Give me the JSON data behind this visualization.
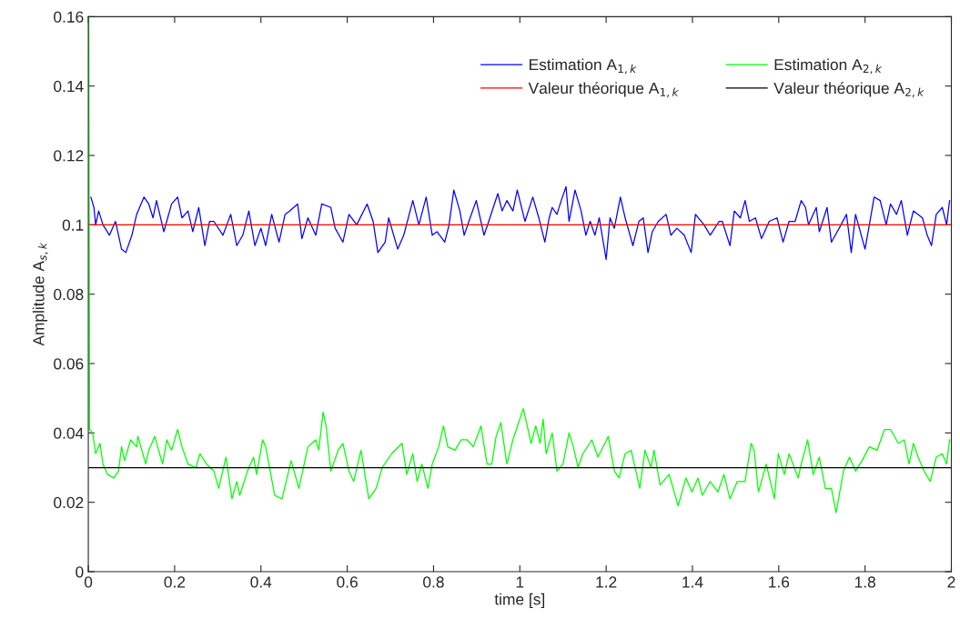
{
  "chart_data": {
    "type": "line",
    "xlabel": "time [s]",
    "ylabel": "Amplitude A$_{s,k}$",
    "xlim": [
      0,
      2
    ],
    "ylim": [
      0,
      0.16
    ],
    "xticks": [
      0,
      0.2,
      0.4,
      0.6,
      0.8,
      1,
      1.2,
      1.4,
      1.6,
      1.8,
      2
    ],
    "yticks": [
      0,
      0.02,
      0.04,
      0.06,
      0.08,
      0.1,
      0.12,
      0.14,
      0.16
    ],
    "grid": false,
    "legend": "top right",
    "marker": "none",
    "line_style": "solid",
    "series": [
      {
        "name": "Estimation A$_{1,k}$",
        "color": "#0000ff",
        "x": [
          0.006,
          0.013,
          0.017,
          0.024,
          0.034,
          0.049,
          0.063,
          0.077,
          0.087,
          0.101,
          0.112,
          0.129,
          0.14,
          0.15,
          0.158,
          0.175,
          0.193,
          0.207,
          0.217,
          0.231,
          0.242,
          0.256,
          0.27,
          0.281,
          0.291,
          0.312,
          0.33,
          0.344,
          0.358,
          0.372,
          0.386,
          0.4,
          0.411,
          0.425,
          0.442,
          0.456,
          0.467,
          0.485,
          0.495,
          0.509,
          0.527,
          0.541,
          0.562,
          0.572,
          0.59,
          0.604,
          0.622,
          0.646,
          0.66,
          0.671,
          0.688,
          0.696,
          0.717,
          0.731,
          0.752,
          0.766,
          0.783,
          0.797,
          0.808,
          0.826,
          0.836,
          0.847,
          0.861,
          0.871,
          0.882,
          0.899,
          0.917,
          0.928,
          0.949,
          0.959,
          0.97,
          0.984,
          0.994,
          1.012,
          1.03,
          1.044,
          1.058,
          1.068,
          1.075,
          1.086,
          1.096,
          1.107,
          1.114,
          1.128,
          1.142,
          1.153,
          1.163,
          1.174,
          1.184,
          1.2,
          1.209,
          1.219,
          1.233,
          1.244,
          1.262,
          1.276,
          1.286,
          1.297,
          1.307,
          1.321,
          1.339,
          1.35,
          1.364,
          1.381,
          1.397,
          1.407,
          1.427,
          1.441,
          1.462,
          1.469,
          1.487,
          1.497,
          1.511,
          1.522,
          1.532,
          1.546,
          1.56,
          1.578,
          1.596,
          1.61,
          1.624,
          1.638,
          1.652,
          1.662,
          1.669,
          1.687,
          1.694,
          1.712,
          1.722,
          1.74,
          1.757,
          1.768,
          1.778,
          1.8,
          1.81,
          1.821,
          1.835,
          1.849,
          1.859,
          1.873,
          1.884,
          1.898,
          1.912,
          1.933,
          1.944,
          1.954,
          1.965,
          1.979,
          1.989,
          1.996
        ],
        "values": [
          0.108,
          0.105,
          0.1,
          0.104,
          0.1,
          0.097,
          0.101,
          0.093,
          0.092,
          0.097,
          0.103,
          0.108,
          0.106,
          0.102,
          0.107,
          0.098,
          0.106,
          0.108,
          0.102,
          0.104,
          0.098,
          0.105,
          0.094,
          0.101,
          0.101,
          0.097,
          0.103,
          0.094,
          0.097,
          0.104,
          0.094,
          0.099,
          0.094,
          0.103,
          0.095,
          0.103,
          0.104,
          0.106,
          0.096,
          0.102,
          0.097,
          0.106,
          0.105,
          0.099,
          0.095,
          0.103,
          0.1,
          0.106,
          0.101,
          0.092,
          0.095,
          0.102,
          0.093,
          0.097,
          0.107,
          0.1,
          0.108,
          0.097,
          0.098,
          0.095,
          0.1,
          0.11,
          0.104,
          0.097,
          0.101,
          0.107,
          0.097,
          0.101,
          0.109,
          0.104,
          0.107,
          0.104,
          0.11,
          0.101,
          0.108,
          0.102,
          0.095,
          0.102,
          0.105,
          0.103,
          0.107,
          0.111,
          0.101,
          0.11,
          0.104,
          0.097,
          0.101,
          0.097,
          0.102,
          0.09,
          0.102,
          0.099,
          0.108,
          0.102,
          0.094,
          0.101,
          0.102,
          0.092,
          0.098,
          0.101,
          0.103,
          0.097,
          0.099,
          0.097,
          0.092,
          0.103,
          0.1,
          0.097,
          0.101,
          0.101,
          0.094,
          0.104,
          0.102,
          0.107,
          0.101,
          0.102,
          0.096,
          0.101,
          0.102,
          0.095,
          0.101,
          0.101,
          0.107,
          0.105,
          0.1,
          0.105,
          0.098,
          0.105,
          0.095,
          0.099,
          0.103,
          0.092,
          0.103,
          0.093,
          0.1,
          0.108,
          0.107,
          0.1,
          0.106,
          0.103,
          0.107,
          0.097,
          0.104,
          0.102,
          0.097,
          0.094,
          0.103,
          0.105,
          0.1,
          0.107
        ]
      },
      {
        "name": "Valeur théorique A$_{1,k}$",
        "color": "#ff0000",
        "x": [
          0,
          2
        ],
        "values": [
          0.1,
          0.1
        ]
      },
      {
        "name": "Estimation A$_{2,k}$",
        "color": "#00ff00",
        "x": [
          0.001,
          0.003,
          0.01,
          0.017,
          0.027,
          0.034,
          0.045,
          0.059,
          0.07,
          0.077,
          0.084,
          0.098,
          0.112,
          0.115,
          0.133,
          0.14,
          0.154,
          0.172,
          0.182,
          0.193,
          0.207,
          0.217,
          0.231,
          0.249,
          0.259,
          0.274,
          0.291,
          0.302,
          0.319,
          0.333,
          0.344,
          0.351,
          0.369,
          0.383,
          0.39,
          0.404,
          0.411,
          0.432,
          0.449,
          0.47,
          0.488,
          0.509,
          0.527,
          0.534,
          0.544,
          0.551,
          0.562,
          0.579,
          0.59,
          0.604,
          0.615,
          0.632,
          0.65,
          0.667,
          0.681,
          0.703,
          0.727,
          0.738,
          0.752,
          0.762,
          0.773,
          0.787,
          0.797,
          0.812,
          0.823,
          0.833,
          0.85,
          0.864,
          0.878,
          0.892,
          0.91,
          0.924,
          0.935,
          0.945,
          0.956,
          0.97,
          0.984,
          1.008,
          1.019,
          1.026,
          1.037,
          1.047,
          1.054,
          1.061,
          1.075,
          1.086,
          1.1,
          1.114,
          1.124,
          1.135,
          1.146,
          1.167,
          1.181,
          1.205,
          1.219,
          1.23,
          1.244,
          1.258,
          1.278,
          1.29,
          1.304,
          1.311,
          1.325,
          1.346,
          1.367,
          1.385,
          1.399,
          1.413,
          1.423,
          1.441,
          1.459,
          1.473,
          1.487,
          1.504,
          1.522,
          1.536,
          1.543,
          1.553,
          1.571,
          1.59,
          1.599,
          1.613,
          1.624,
          1.645,
          1.652,
          1.667,
          1.68,
          1.694,
          1.708,
          1.722,
          1.733,
          1.74,
          1.75,
          1.764,
          1.778,
          1.793,
          1.81,
          1.828,
          1.845,
          1.859,
          1.877,
          1.891,
          1.902,
          1.912,
          1.923,
          1.937,
          1.951,
          1.965,
          1.979,
          1.989,
          1.996
        ],
        "values": [
          0.16,
          0.041,
          0.04,
          0.034,
          0.037,
          0.031,
          0.028,
          0.027,
          0.029,
          0.036,
          0.032,
          0.038,
          0.036,
          0.039,
          0.031,
          0.035,
          0.039,
          0.031,
          0.038,
          0.035,
          0.041,
          0.036,
          0.031,
          0.03,
          0.034,
          0.031,
          0.029,
          0.024,
          0.033,
          0.021,
          0.026,
          0.022,
          0.029,
          0.033,
          0.028,
          0.038,
          0.036,
          0.022,
          0.021,
          0.032,
          0.024,
          0.036,
          0.038,
          0.035,
          0.046,
          0.042,
          0.029,
          0.035,
          0.037,
          0.029,
          0.026,
          0.035,
          0.021,
          0.024,
          0.03,
          0.034,
          0.037,
          0.028,
          0.034,
          0.026,
          0.031,
          0.024,
          0.031,
          0.036,
          0.042,
          0.036,
          0.035,
          0.038,
          0.038,
          0.036,
          0.042,
          0.031,
          0.031,
          0.039,
          0.043,
          0.031,
          0.038,
          0.047,
          0.041,
          0.037,
          0.042,
          0.037,
          0.044,
          0.034,
          0.04,
          0.029,
          0.031,
          0.04,
          0.036,
          0.03,
          0.034,
          0.038,
          0.033,
          0.039,
          0.029,
          0.027,
          0.034,
          0.035,
          0.024,
          0.035,
          0.03,
          0.035,
          0.025,
          0.028,
          0.019,
          0.027,
          0.023,
          0.027,
          0.022,
          0.026,
          0.023,
          0.028,
          0.021,
          0.026,
          0.026,
          0.037,
          0.035,
          0.023,
          0.031,
          0.021,
          0.034,
          0.028,
          0.034,
          0.027,
          0.031,
          0.038,
          0.028,
          0.033,
          0.024,
          0.024,
          0.017,
          0.022,
          0.029,
          0.033,
          0.029,
          0.032,
          0.036,
          0.035,
          0.041,
          0.041,
          0.037,
          0.038,
          0.031,
          0.037,
          0.033,
          0.029,
          0.026,
          0.033,
          0.034,
          0.031,
          0.038
        ]
      },
      {
        "name": "Valeur théorique A$_{2,k}$",
        "color": "#000000",
        "x": [
          0,
          2
        ],
        "values": [
          0.03,
          0.03
        ]
      }
    ]
  }
}
